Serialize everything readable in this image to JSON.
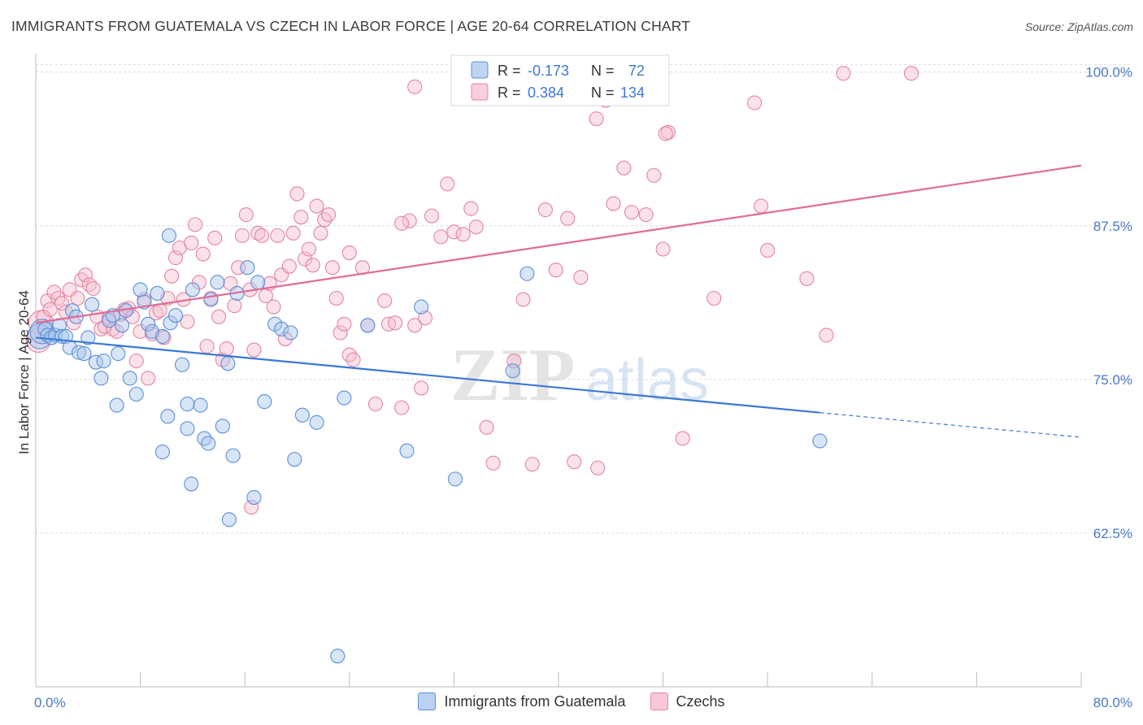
{
  "header": {
    "title": "IMMIGRANTS FROM GUATEMALA VS CZECH IN LABOR FORCE | AGE 20-64 CORRELATION CHART",
    "source": "Source: ZipAtlas.com"
  },
  "watermark": {
    "zip": "ZIP",
    "atlas": "atlas"
  },
  "legend": {
    "rows": [
      {
        "r_label": "R =",
        "r_value": "-0.173",
        "n_label": "N =",
        "n_value": "72",
        "color": "#a9c6ee",
        "edge": "#5b8fd6"
      },
      {
        "r_label": "R =",
        "r_value": "0.384",
        "n_label": "N =",
        "n_value": "134",
        "color": "#f7bfd0",
        "edge": "#e3849f"
      }
    ]
  },
  "bottom_legend": [
    {
      "label": "Immigrants from Guatemala",
      "color": "#b9d2f2",
      "edge": "#5b8fd6"
    },
    {
      "label": "Czechs",
      "color": "#f9c8d6",
      "edge": "#e3849f"
    }
  ],
  "chart_data": {
    "type": "scatter",
    "title": "IMMIGRANTS FROM GUATEMALA VS CZECH IN LABOR FORCE | AGE 20-64 CORRELATION CHART",
    "xlabel": "",
    "ylabel": "In Labor Force | Age 20-64",
    "xlim": [
      0,
      80
    ],
    "ylim": [
      50,
      101.5
    ],
    "x_tick_labels": [
      "0.0%",
      "80.0%"
    ],
    "y_ticks": [
      62.5,
      75.0,
      87.5,
      100.0
    ],
    "y_tick_labels": [
      "62.5%",
      "75.0%",
      "87.5%",
      "100.0%"
    ],
    "grid": true,
    "colors": {
      "blue": "#5b8fd6",
      "blue_line": "#3a78d4",
      "pink": "#e3849f",
      "pink_line": "#e06c97"
    },
    "series": [
      {
        "name": "Immigrants from Guatemala",
        "color": "#5b8fd6",
        "points": [
          [
            0.3,
            78.5
          ],
          [
            0.5,
            78.9
          ],
          [
            0.7,
            79.1
          ],
          [
            0.9,
            78.6
          ],
          [
            1.2,
            78.4
          ],
          [
            1.5,
            78.6
          ],
          [
            1.8,
            79.4
          ],
          [
            2.0,
            78.5
          ],
          [
            2.3,
            78.5
          ],
          [
            2.6,
            77.6
          ],
          [
            2.8,
            80.6
          ],
          [
            3.1,
            80.1
          ],
          [
            3.3,
            77.2
          ],
          [
            3.7,
            77.1
          ],
          [
            4.0,
            78.4
          ],
          [
            4.3,
            81.1
          ],
          [
            4.6,
            76.4
          ],
          [
            5.0,
            75.1
          ],
          [
            5.2,
            76.5
          ],
          [
            5.6,
            79.8
          ],
          [
            5.9,
            80.2
          ],
          [
            6.3,
            77.1
          ],
          [
            6.6,
            79.4
          ],
          [
            6.9,
            80.6
          ],
          [
            7.2,
            75.1
          ],
          [
            8.0,
            82.3
          ],
          [
            8.3,
            81.3
          ],
          [
            8.6,
            79.5
          ],
          [
            8.9,
            78.9
          ],
          [
            9.3,
            82.0
          ],
          [
            9.7,
            78.5
          ],
          [
            10.3,
            79.6
          ],
          [
            10.7,
            80.2
          ],
          [
            11.2,
            76.2
          ],
          [
            11.6,
            71.0
          ],
          [
            12.0,
            82.3
          ],
          [
            12.6,
            72.9
          ],
          [
            12.9,
            70.2
          ],
          [
            13.4,
            81.5
          ],
          [
            13.9,
            82.9
          ],
          [
            14.7,
            76.3
          ],
          [
            15.4,
            82.0
          ],
          [
            16.2,
            84.1
          ],
          [
            17.0,
            82.9
          ],
          [
            17.5,
            73.2
          ],
          [
            18.3,
            79.5
          ],
          [
            18.8,
            79.1
          ],
          [
            19.5,
            78.8
          ],
          [
            20.4,
            72.1
          ],
          [
            21.5,
            71.5
          ],
          [
            23.6,
            73.5
          ],
          [
            25.4,
            79.4
          ],
          [
            28.4,
            69.2
          ],
          [
            29.5,
            80.9
          ],
          [
            32.1,
            66.9
          ],
          [
            36.5,
            75.7
          ],
          [
            37.6,
            83.6
          ],
          [
            60.0,
            70.0
          ],
          [
            10.2,
            86.7
          ],
          [
            13.2,
            69.8
          ],
          [
            14.3,
            71.2
          ],
          [
            15.1,
            68.8
          ],
          [
            16.7,
            65.4
          ],
          [
            9.7,
            69.1
          ],
          [
            11.9,
            66.5
          ],
          [
            14.8,
            63.6
          ],
          [
            23.1,
            52.5
          ],
          [
            19.8,
            68.5
          ],
          [
            11.6,
            73.0
          ],
          [
            10.1,
            72.0
          ],
          [
            7.7,
            73.8
          ],
          [
            6.2,
            72.9
          ]
        ]
      },
      {
        "name": "Czechs",
        "color": "#e3849f",
        "points": [
          [
            0.2,
            78.2
          ],
          [
            0.4,
            79.6
          ],
          [
            0.6,
            80.1
          ],
          [
            0.9,
            81.4
          ],
          [
            1.1,
            80.7
          ],
          [
            1.4,
            82.1
          ],
          [
            1.7,
            81.6
          ],
          [
            2.0,
            81.2
          ],
          [
            2.3,
            80.5
          ],
          [
            2.6,
            82.3
          ],
          [
            2.9,
            79.6
          ],
          [
            3.2,
            81.6
          ],
          [
            3.5,
            83.1
          ],
          [
            3.8,
            83.5
          ],
          [
            4.1,
            82.7
          ],
          [
            4.4,
            82.4
          ],
          [
            4.7,
            80.1
          ],
          [
            5.0,
            79.1
          ],
          [
            5.3,
            79.3
          ],
          [
            5.6,
            80.0
          ],
          [
            5.9,
            79.1
          ],
          [
            6.2,
            78.9
          ],
          [
            6.5,
            80.3
          ],
          [
            6.8,
            80.7
          ],
          [
            7.1,
            80.8
          ],
          [
            7.4,
            80.1
          ],
          [
            7.7,
            76.5
          ],
          [
            8.0,
            78.9
          ],
          [
            8.3,
            81.5
          ],
          [
            8.6,
            75.1
          ],
          [
            8.9,
            78.7
          ],
          [
            9.2,
            80.4
          ],
          [
            9.5,
            80.6
          ],
          [
            9.8,
            78.4
          ],
          [
            10.1,
            81.6
          ],
          [
            10.4,
            83.4
          ],
          [
            10.7,
            84.9
          ],
          [
            11.0,
            85.7
          ],
          [
            11.3,
            81.5
          ],
          [
            11.6,
            79.7
          ],
          [
            11.9,
            86.1
          ],
          [
            12.2,
            87.6
          ],
          [
            12.5,
            82.9
          ],
          [
            12.8,
            85.2
          ],
          [
            13.1,
            77.7
          ],
          [
            13.4,
            81.6
          ],
          [
            13.7,
            86.5
          ],
          [
            14.0,
            80.1
          ],
          [
            14.3,
            76.6
          ],
          [
            14.6,
            77.5
          ],
          [
            14.9,
            82.8
          ],
          [
            15.2,
            81.0
          ],
          [
            15.5,
            84.1
          ],
          [
            15.8,
            86.7
          ],
          [
            16.1,
            88.4
          ],
          [
            16.4,
            82.3
          ],
          [
            16.7,
            77.4
          ],
          [
            17.0,
            86.9
          ],
          [
            17.3,
            86.7
          ],
          [
            17.6,
            81.8
          ],
          [
            17.9,
            82.8
          ],
          [
            18.2,
            80.9
          ],
          [
            18.5,
            86.7
          ],
          [
            18.8,
            83.5
          ],
          [
            19.1,
            78.3
          ],
          [
            19.4,
            84.2
          ],
          [
            19.7,
            86.9
          ],
          [
            20.0,
            90.1
          ],
          [
            20.3,
            88.2
          ],
          [
            20.6,
            84.8
          ],
          [
            20.9,
            85.6
          ],
          [
            21.2,
            84.3
          ],
          [
            21.5,
            89.1
          ],
          [
            21.8,
            86.9
          ],
          [
            22.1,
            88.0
          ],
          [
            22.4,
            88.4
          ],
          [
            22.7,
            84.1
          ],
          [
            23.0,
            81.6
          ],
          [
            23.3,
            78.8
          ],
          [
            23.6,
            79.5
          ],
          [
            24.0,
            77.0
          ],
          [
            24.3,
            76.6
          ],
          [
            25.0,
            84.1
          ],
          [
            25.4,
            79.4
          ],
          [
            26.0,
            73.0
          ],
          [
            26.7,
            81.4
          ],
          [
            27.0,
            79.5
          ],
          [
            27.5,
            79.6
          ],
          [
            28.0,
            72.7
          ],
          [
            28.6,
            87.9
          ],
          [
            29.0,
            79.4
          ],
          [
            29.5,
            74.3
          ],
          [
            29.8,
            80.0
          ],
          [
            30.3,
            88.3
          ],
          [
            31.0,
            86.6
          ],
          [
            31.5,
            90.9
          ],
          [
            32.0,
            87.0
          ],
          [
            32.7,
            86.8
          ],
          [
            33.3,
            88.9
          ],
          [
            33.7,
            87.4
          ],
          [
            34.5,
            71.1
          ],
          [
            35.0,
            68.2
          ],
          [
            36.6,
            76.5
          ],
          [
            37.3,
            81.5
          ],
          [
            38.0,
            68.1
          ],
          [
            39.0,
            88.8
          ],
          [
            39.8,
            83.9
          ],
          [
            40.7,
            88.1
          ],
          [
            41.2,
            68.3
          ],
          [
            41.7,
            83.3
          ],
          [
            42.9,
            96.2
          ],
          [
            43.6,
            97.7
          ],
          [
            44.2,
            89.3
          ],
          [
            45.0,
            92.2
          ],
          [
            45.6,
            88.6
          ],
          [
            46.7,
            88.4
          ],
          [
            47.3,
            91.6
          ],
          [
            48.0,
            85.6
          ],
          [
            48.4,
            95.1
          ],
          [
            49.5,
            70.2
          ],
          [
            51.9,
            81.6
          ],
          [
            55.0,
            97.5
          ],
          [
            56.0,
            85.5
          ],
          [
            59.0,
            83.2
          ],
          [
            60.5,
            78.6
          ],
          [
            61.8,
            99.9
          ],
          [
            67.0,
            99.9
          ],
          [
            29.0,
            98.8
          ],
          [
            43.0,
            67.8
          ],
          [
            16.5,
            64.6
          ],
          [
            28.0,
            87.7
          ],
          [
            48.2,
            95.0
          ],
          [
            55.5,
            89.1
          ],
          [
            24.0,
            85.3
          ]
        ]
      }
    ],
    "trend_lines": [
      {
        "series": "Immigrants from Guatemala",
        "x_start": 0,
        "y_start": 78.4,
        "x_solid_end": 60,
        "y_solid_end": 72.3,
        "x_end": 80,
        "y_end": 70.3
      },
      {
        "series": "Czechs",
        "x_start": 0,
        "y_start": 79.6,
        "x_end": 80,
        "y_end": 92.4
      }
    ]
  }
}
